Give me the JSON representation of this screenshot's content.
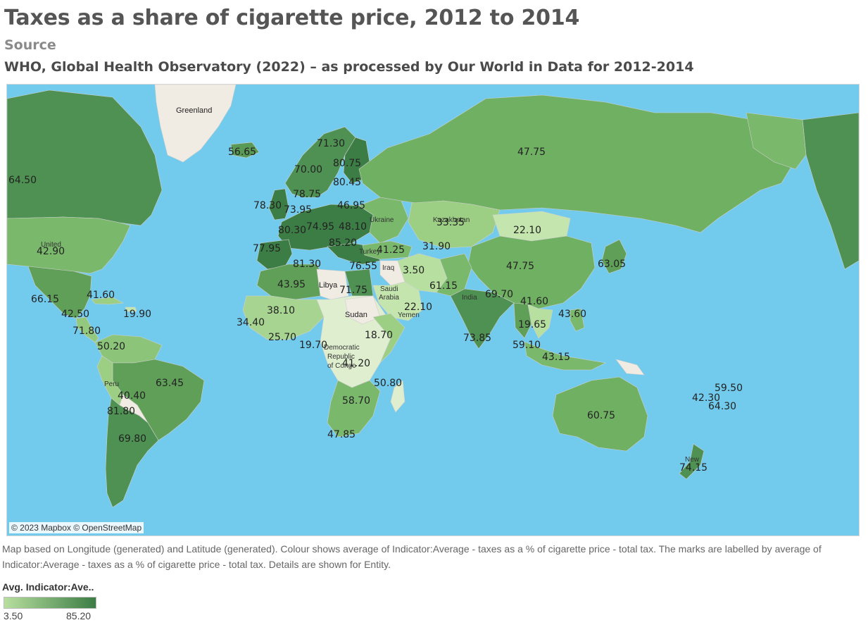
{
  "title": "Taxes as a share of cigarette price, 2012 to 2014",
  "source_label": "Source",
  "source_text": "WHO, Global Health Observatory (2022) – as processed by Our World in Data for 2012-2014",
  "attribution": "© 2023 Mapbox © OpenStreetMap",
  "caption": "Map based on Longitude (generated) and Latitude (generated).  Colour shows average of Indicator:Average - taxes as a % of cigarette price - total tax.  The marks are labelled by average of Indicator:Average - taxes as a % of cigarette price - total tax.  Details are shown for Entity.",
  "legend": {
    "title": "Avg. Indicator:Ave..",
    "min_label": "3.50",
    "max_label": "85.20",
    "min_color": "#b7df9f",
    "max_color": "#3c7d45"
  },
  "colors": {
    "ocean": "#72cbed",
    "no_data": "#f1ece3",
    "low": "#b7df9f",
    "high": "#3c7d45"
  },
  "map_place_names": {
    "greenland": "Greenland",
    "libya": "Libya",
    "sudan": "Sudan",
    "drc_line1": "Democratic",
    "drc_line2": "Republic",
    "drc_line3": "of Congo",
    "iraq": "Iraq",
    "india": "India",
    "united": "United",
    "ukraine": "Ukraine",
    "saudi1": "Saudi",
    "saudi2": "Arabia",
    "yemen": "Yemen",
    "peru": "Peru",
    "turkey": "Turkey",
    "kazakhstan": "Kazakhstan",
    "new": "New"
  },
  "value_labels": {
    "greenland_iceland": "56.65",
    "alaska": "64.50",
    "usa": "42.90",
    "mexico": "66.15",
    "cuba": "41.60",
    "dominican": "19.90",
    "central_america": "42.50",
    "panama": "71.80",
    "colombia": "50.20",
    "peru": "40.40",
    "brazil": "63.45",
    "chile_north": "81.80",
    "argentina": "69.80",
    "norway": "70.00",
    "sweden_finland": "71.30",
    "finland": "80.75",
    "baltics": "80.45",
    "denmark": "78.75",
    "uk": "78.30",
    "germany": "73.95",
    "poland": "46.95",
    "france": "80.30",
    "austria": "74.95",
    "ukraine": "48.10",
    "spain": "77.95",
    "italy": "85.20",
    "turkey": "41.25",
    "greece": "76.55",
    "algeria": "81.30",
    "morocco": "43.95",
    "egypt": "71.75",
    "mauritania": "38.10",
    "senegal": "34.40",
    "ghana": "25.70",
    "nigeria": "19.70",
    "ethiopia": "18.70",
    "drc": "41.20",
    "mozambique": "50.80",
    "zimbabwe": "58.70",
    "south_africa": "47.85",
    "iran": "3.50",
    "kazakhstan": "33.35",
    "afghanistan": "31.90",
    "pakistan": "61.15",
    "saudi": "22.10",
    "india": "73.85",
    "bangladesh": "69.70",
    "mongolia": "22.10",
    "russia": "47.75",
    "china": "47.75",
    "japan": "63.05",
    "vietnam": "41.60",
    "thailand": "19.65",
    "philippines": "43.60",
    "malaysia": "59.10",
    "indonesia": "43.15",
    "australia": "60.75",
    "new_zealand": "74.15",
    "fiji": "59.50",
    "vanuatu": "42.30",
    "samoa": "64.30"
  }
}
